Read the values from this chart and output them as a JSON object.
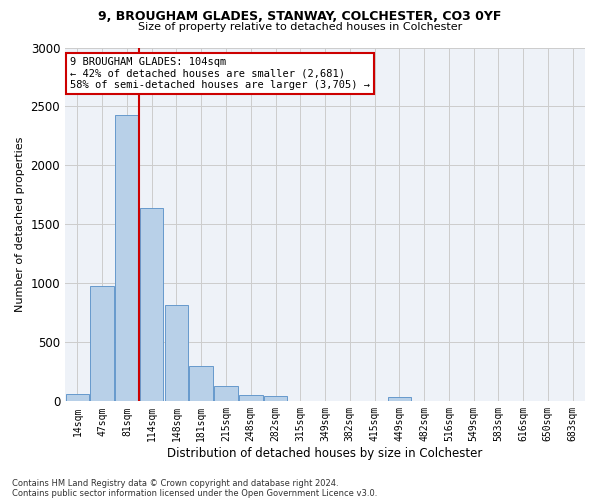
{
  "title1": "9, BROUGHAM GLADES, STANWAY, COLCHESTER, CO3 0YF",
  "title2": "Size of property relative to detached houses in Colchester",
  "xlabel": "Distribution of detached houses by size in Colchester",
  "ylabel": "Number of detached properties",
  "footnote1": "Contains HM Land Registry data © Crown copyright and database right 2024.",
  "footnote2": "Contains public sector information licensed under the Open Government Licence v3.0.",
  "bar_labels": [
    "14sqm",
    "47sqm",
    "81sqm",
    "114sqm",
    "148sqm",
    "181sqm",
    "215sqm",
    "248sqm",
    "282sqm",
    "315sqm",
    "349sqm",
    "382sqm",
    "415sqm",
    "449sqm",
    "482sqm",
    "516sqm",
    "549sqm",
    "583sqm",
    "616sqm",
    "650sqm",
    "683sqm"
  ],
  "bar_values": [
    60,
    980,
    2430,
    1640,
    820,
    300,
    130,
    55,
    45,
    0,
    0,
    0,
    0,
    35,
    0,
    0,
    0,
    0,
    0,
    0,
    0
  ],
  "bar_color": "#b8d0e8",
  "bar_edge_color": "#6699cc",
  "vline_color": "#cc0000",
  "annotation_text": "9 BROUGHAM GLADES: 104sqm\n← 42% of detached houses are smaller (2,681)\n58% of semi-detached houses are larger (3,705) →",
  "ylim": [
    0,
    3000
  ],
  "grid_color": "#cccccc",
  "background_color": "#eef2f8"
}
